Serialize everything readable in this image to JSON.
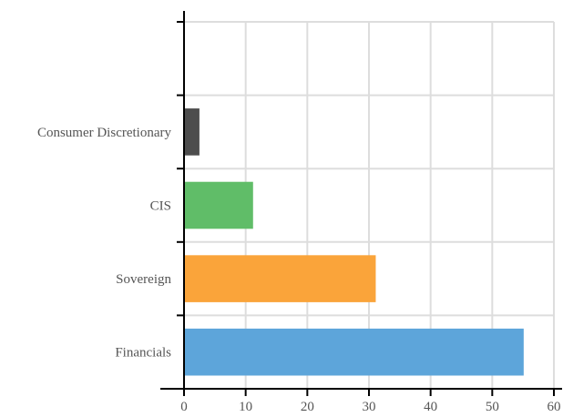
{
  "chart_data": {
    "type": "bar",
    "orientation": "horizontal",
    "categories": [
      "Financials",
      "Sovereign",
      "CIS",
      "Consumer Discretionary",
      ""
    ],
    "values": [
      55.1,
      31.1,
      11.2,
      2.5,
      null
    ],
    "colors": [
      "#5da5da",
      "#faa43a",
      "#60bd68",
      "#4d4d4d",
      ""
    ],
    "xlim": [
      0,
      60
    ],
    "xticks": [
      0,
      10,
      20,
      30,
      40,
      50,
      60
    ],
    "grid": true,
    "legend": "none"
  }
}
